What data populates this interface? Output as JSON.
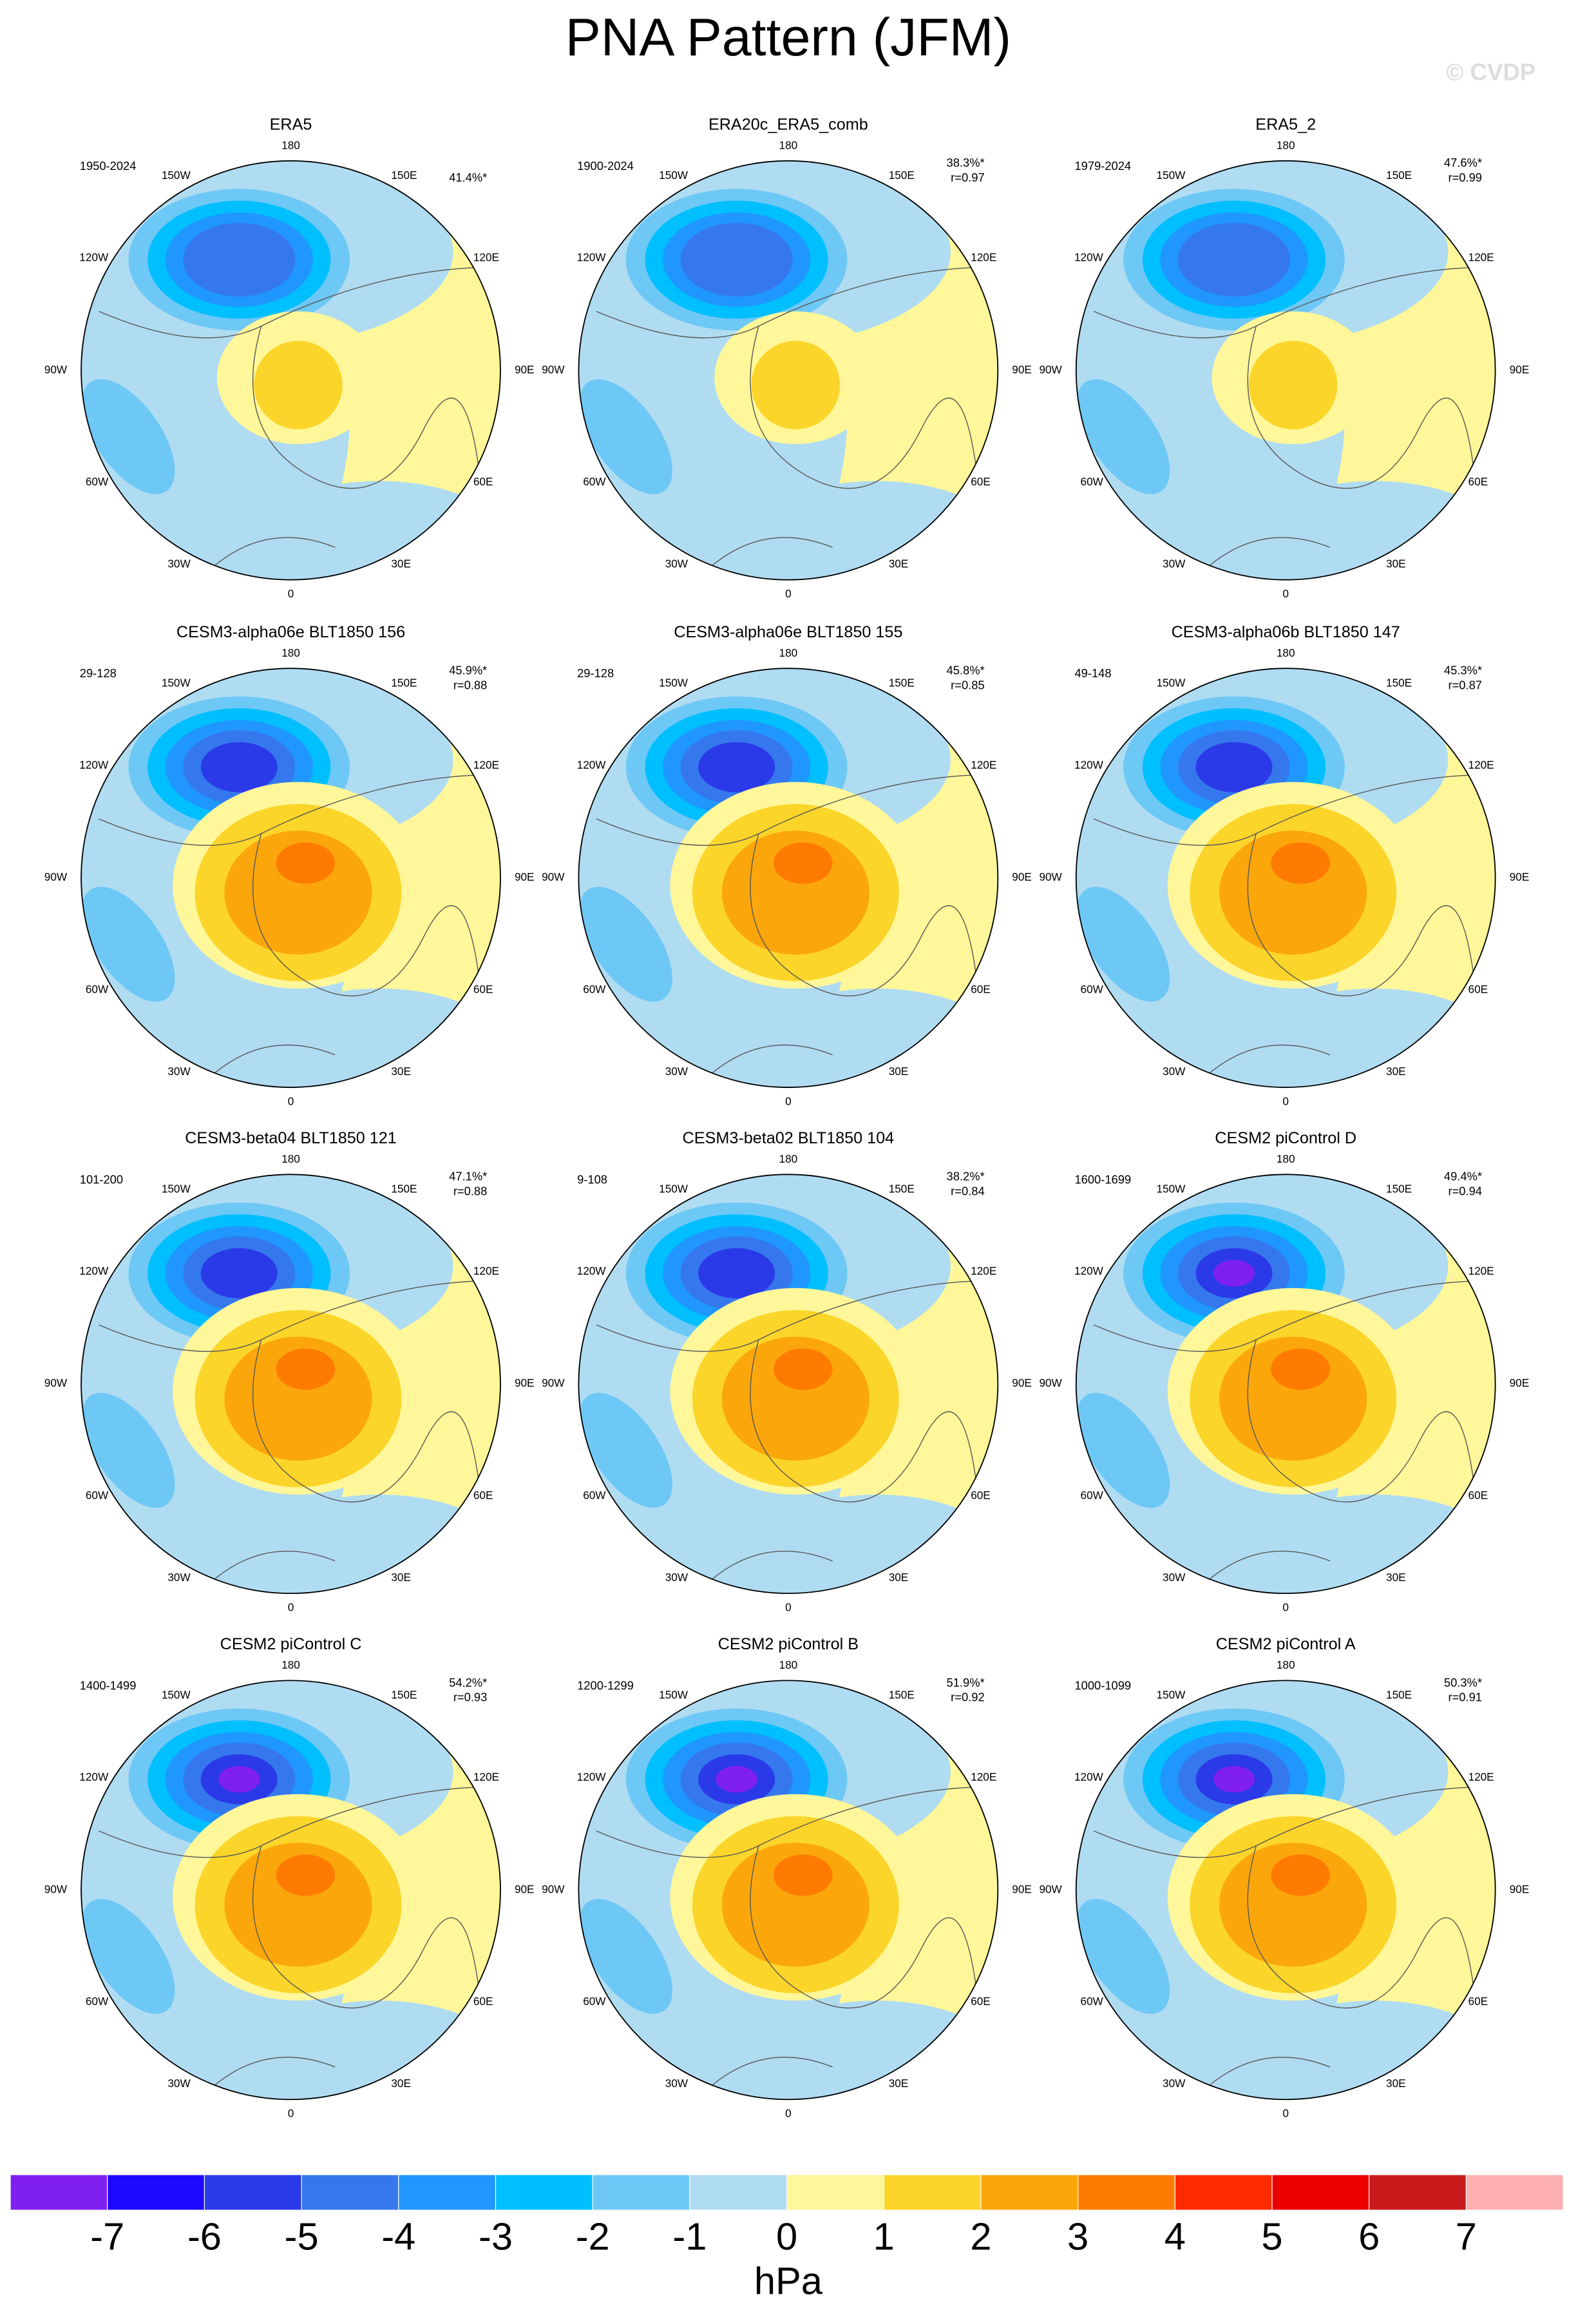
{
  "title": "PNA Pattern (JFM)",
  "watermark": "© CVDP",
  "lon_labels": [
    "180",
    "150E",
    "120E",
    "90E",
    "60E",
    "30E",
    "0",
    "30W",
    "60W",
    "90W",
    "120W",
    "150W"
  ],
  "panels": [
    {
      "title": "ERA5",
      "period": "1950-2024",
      "variance": "41.4%*"
    },
    {
      "title": "ERA20c_ERA5_comb",
      "period": "1900-2024",
      "variance": "38.3%*",
      "r": "r=0.97"
    },
    {
      "title": "ERA5_2",
      "period": "1979-2024",
      "variance": "47.6%*",
      "r": "r=0.99"
    },
    {
      "title": "CESM3-alpha06e BLT1850 156",
      "period": "29-128",
      "variance": "45.9%*",
      "r": "r=0.88"
    },
    {
      "title": "CESM3-alpha06e BLT1850 155",
      "period": "29-128",
      "variance": "45.8%*",
      "r": "r=0.85"
    },
    {
      "title": "CESM3-alpha06b BLT1850 147",
      "period": "49-148",
      "variance": "45.3%*",
      "r": "r=0.87"
    },
    {
      "title": "CESM3-beta04 BLT1850 121",
      "period": "101-200",
      "variance": "47.1%*",
      "r": "r=0.88"
    },
    {
      "title": "CESM3-beta02 BLT1850 104",
      "period": "9-108",
      "variance": "38.2%*",
      "r": "r=0.84"
    },
    {
      "title": "CESM2 piControl D",
      "period": "1600-1699",
      "variance": "49.4%*",
      "r": "r=0.94"
    },
    {
      "title": "CESM2 piControl C",
      "period": "1400-1499",
      "variance": "54.2%*",
      "r": "r=0.93"
    },
    {
      "title": "CESM2 piControl B",
      "period": "1200-1299",
      "variance": "51.9%*",
      "r": "r=0.92"
    },
    {
      "title": "CESM2 piControl A",
      "period": "1000-1099",
      "variance": "50.3%*",
      "r": "r=0.91"
    }
  ],
  "colorbar": {
    "ticks": [
      -7,
      -6,
      -5,
      -4,
      -3,
      -2,
      -1,
      0,
      1,
      2,
      3,
      4,
      5,
      6,
      7
    ],
    "colors": [
      "#8020f0",
      "#1e08ff",
      "#2b3ae8",
      "#3578ee",
      "#1f97ff",
      "#00bfff",
      "#6ec8f5",
      "#b0dcf2",
      "#fff799",
      "#fcd52a",
      "#fba70b",
      "#ff7b00",
      "#ff2b00",
      "#ec0000",
      "#c81a1a",
      "#ffb0b0"
    ],
    "unit": "hPa"
  }
}
